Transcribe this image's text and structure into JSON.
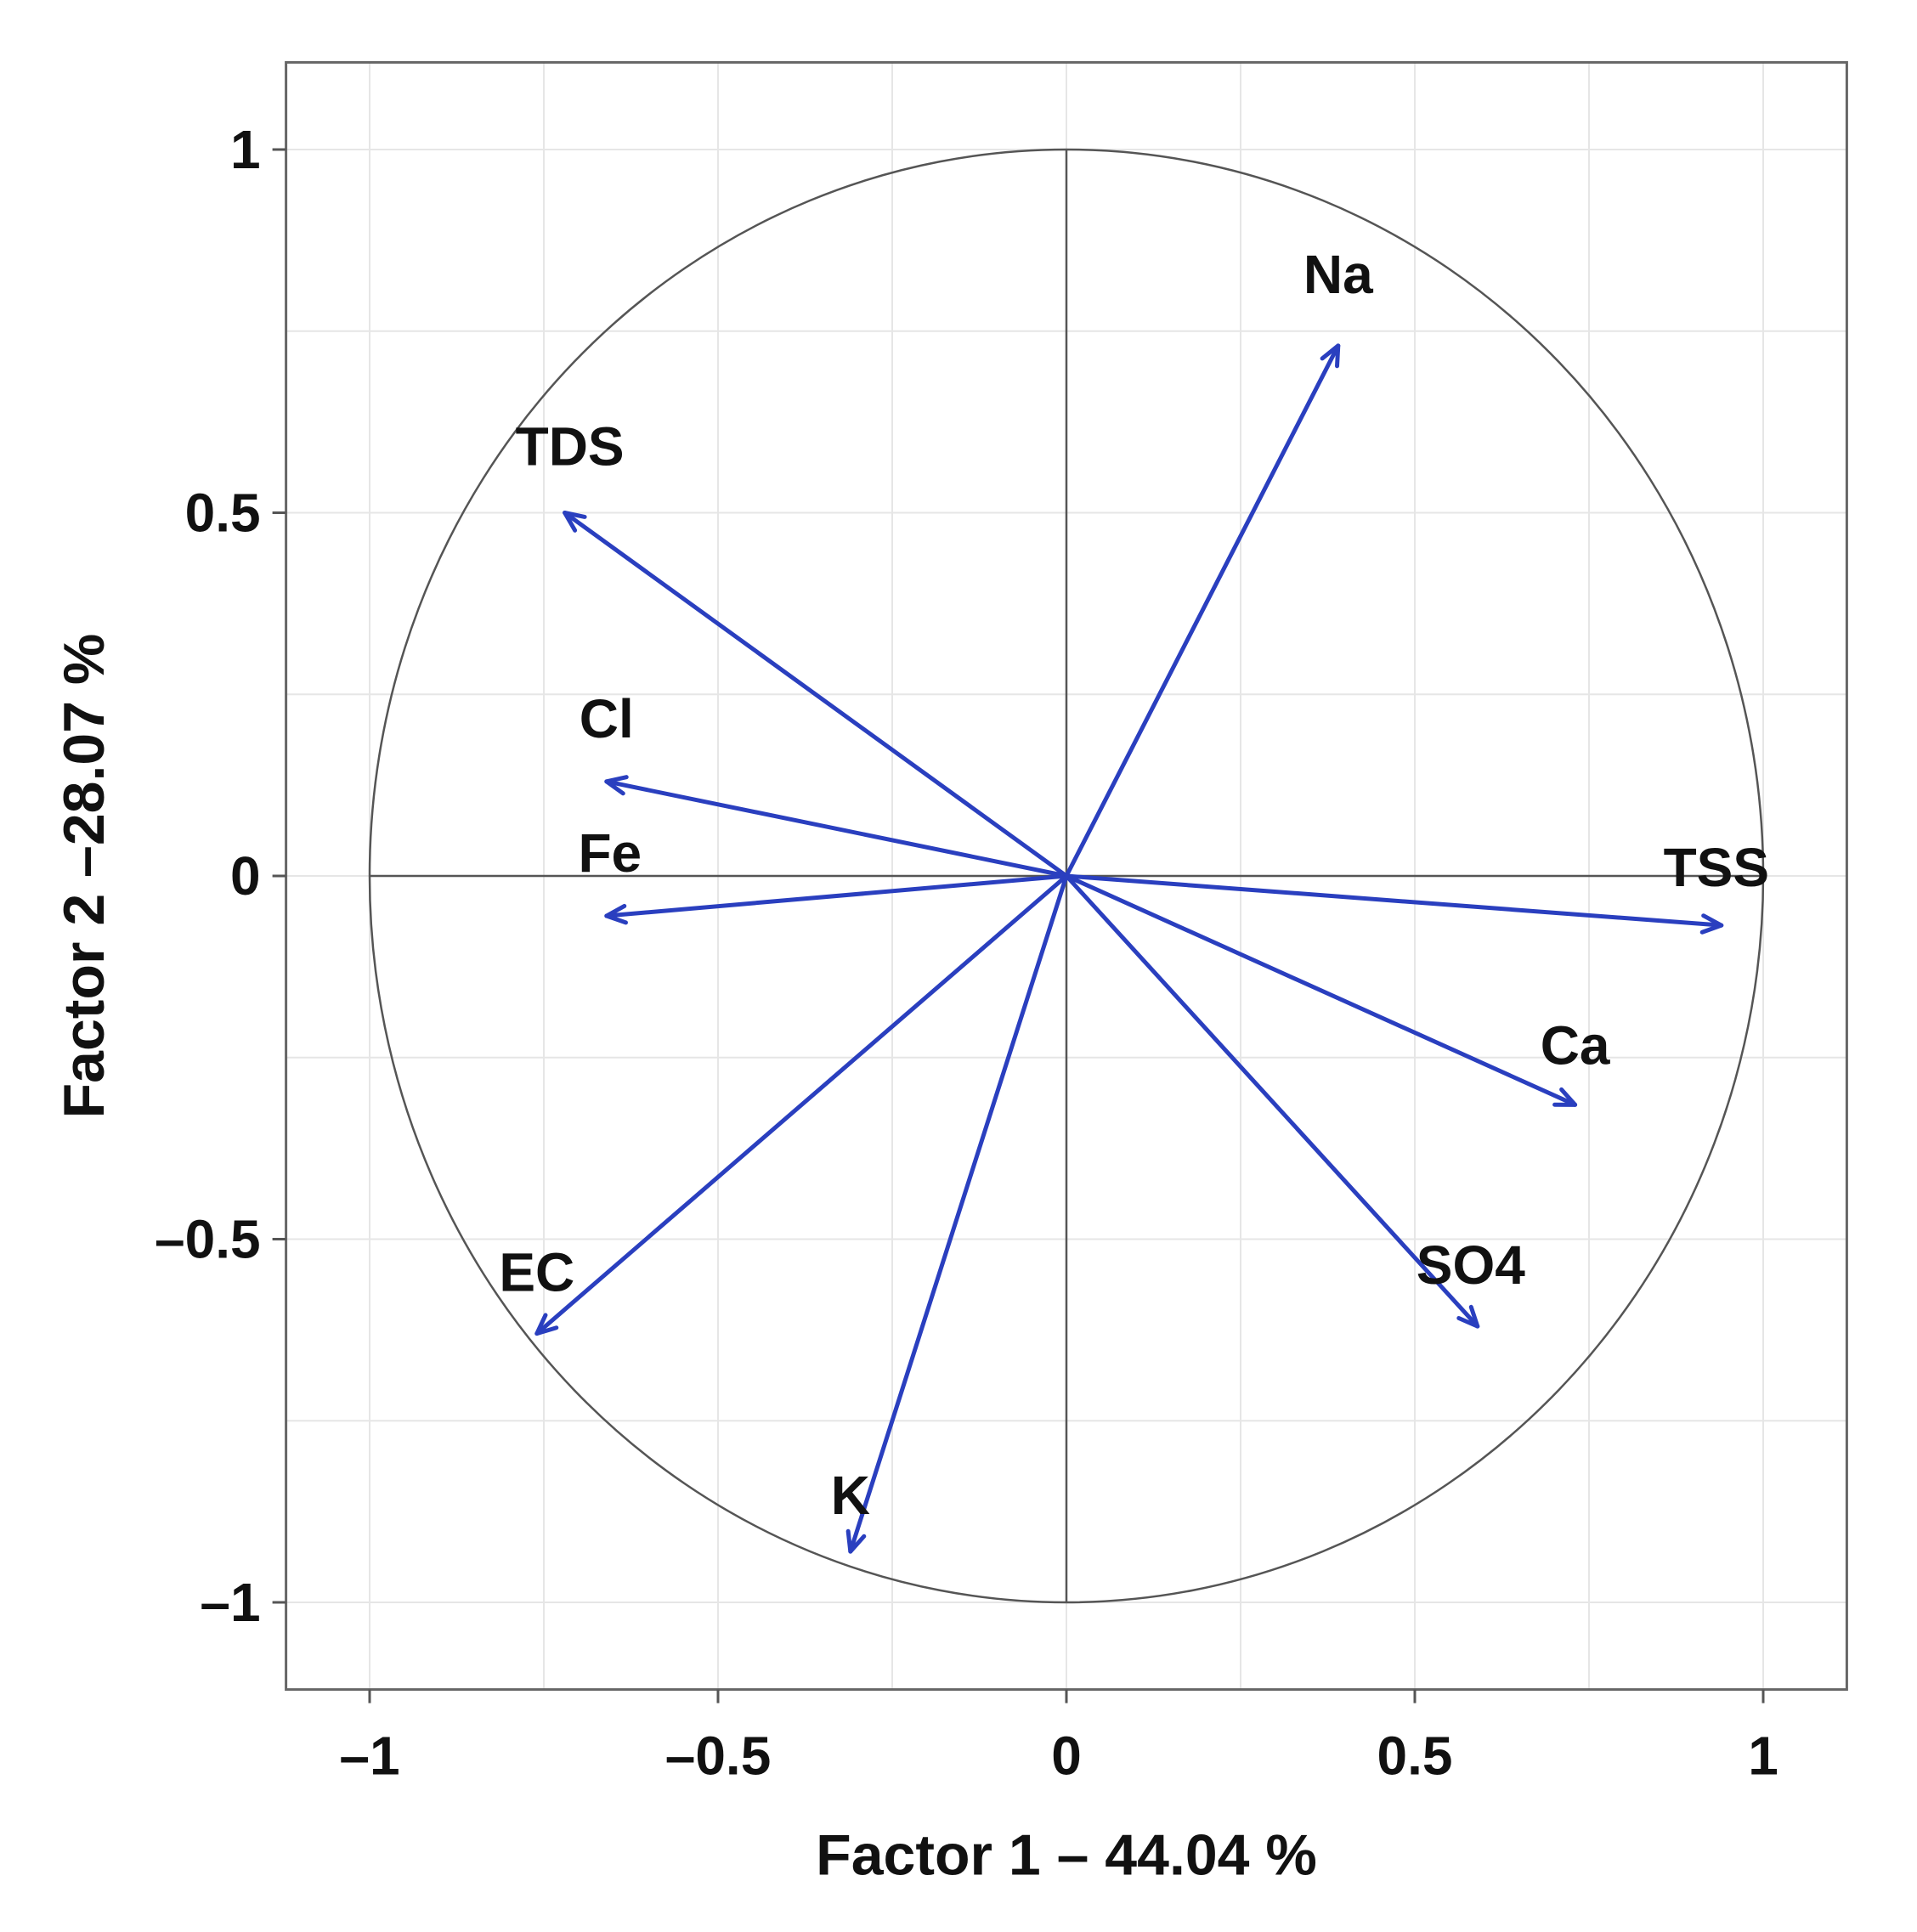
{
  "chart_data": {
    "type": "scatter",
    "subtype": "correlation-circle",
    "xlabel": "Factor 1 – 44.04 %",
    "ylabel": "Factor 2 –28.07 %",
    "xlim": [
      -1.12,
      1.12
    ],
    "ylim": [
      -1.12,
      1.12
    ],
    "xticks": [
      -1,
      -0.5,
      0,
      0.5,
      1
    ],
    "yticks": [
      -1,
      -0.5,
      0,
      0.5,
      1
    ],
    "xtick_labels": [
      "–1",
      "–0.5",
      "0",
      "0.5",
      "1"
    ],
    "ytick_labels": [
      "–1",
      "–0.5",
      "0",
      "0.5",
      "1"
    ],
    "grid": true,
    "unit_circle": true,
    "arrow_color": "#2a3fbf",
    "variables": [
      {
        "label": "Na",
        "x": 0.39,
        "y": 0.73
      },
      {
        "label": "TDS",
        "x": -0.72,
        "y": 0.5
      },
      {
        "label": "Cl",
        "x": -0.66,
        "y": 0.13
      },
      {
        "label": "Fe",
        "x": -0.66,
        "y": -0.055
      },
      {
        "label": "TSS",
        "x": 0.94,
        "y": -0.068
      },
      {
        "label": "Ca",
        "x": 0.73,
        "y": -0.315
      },
      {
        "label": "SO4",
        "x": 0.59,
        "y": -0.62
      },
      {
        "label": "EC",
        "x": -0.76,
        "y": -0.63
      },
      {
        "label": "K",
        "x": -0.31,
        "y": -0.93
      }
    ]
  }
}
